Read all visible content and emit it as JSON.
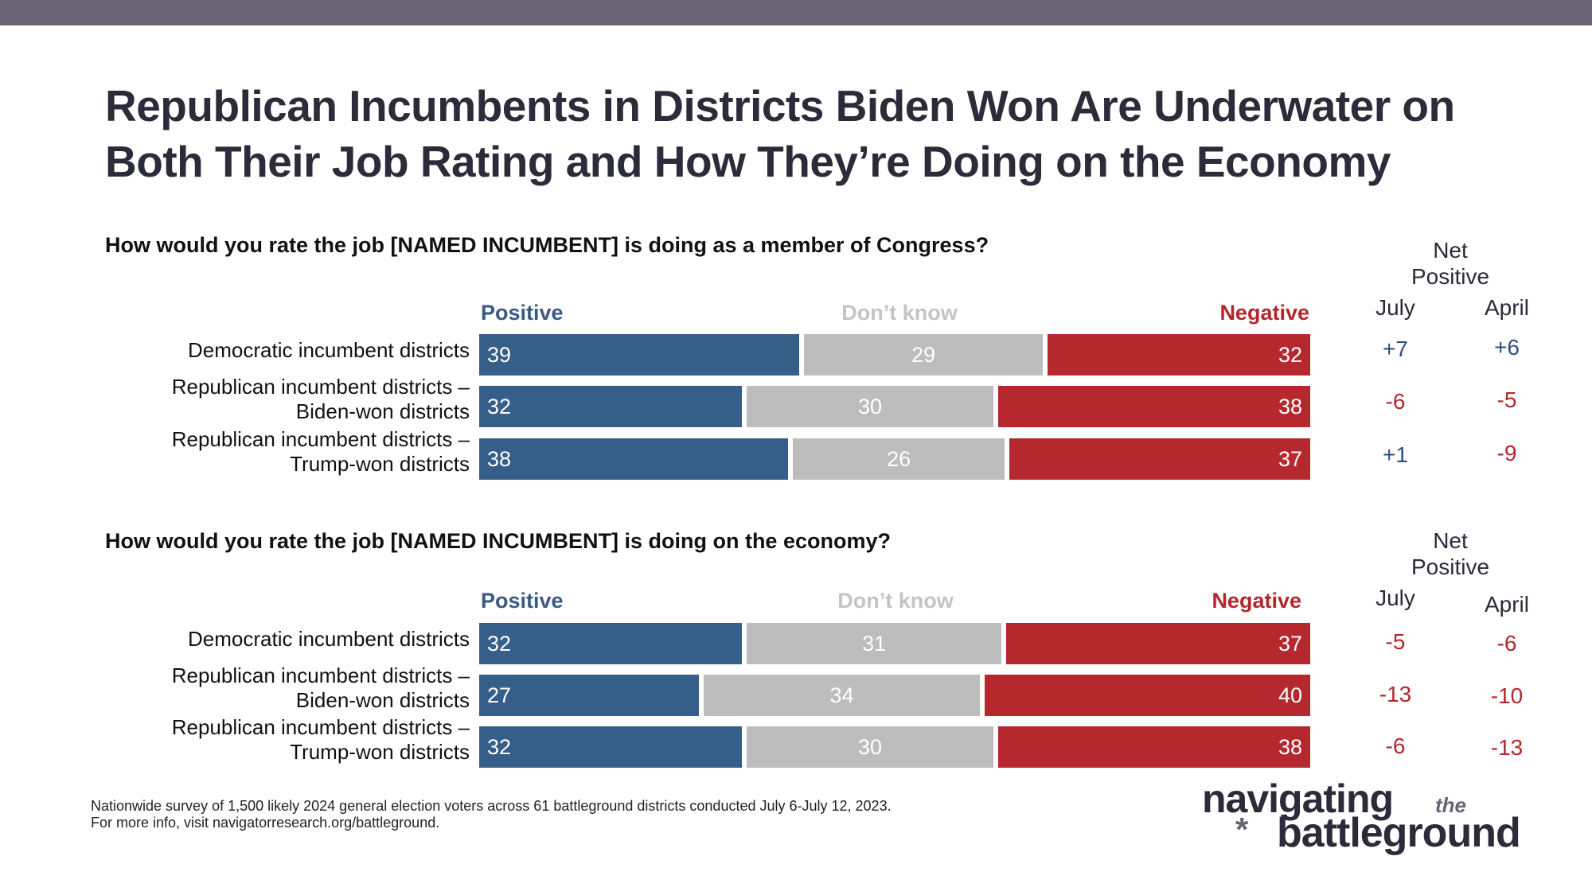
{
  "title": {
    "line1": "Republican Incumbents in Districts Biden Won Are Underwater on",
    "line2": "Both Their Job Rating and How They’re Doing on the Economy"
  },
  "net_header": {
    "line1": "Net",
    "line2": "Positive",
    "july": "July",
    "april": "April"
  },
  "legend": {
    "positive": "Positive",
    "dont_know": "Don’t know",
    "negative": "Negative"
  },
  "colors": {
    "positive": "#355e89",
    "dont_know": "#bdbdbd",
    "negative": "#b4282e"
  },
  "chart_data": [
    {
      "type": "bar",
      "stacked": true,
      "orientation": "horizontal",
      "title": "How would you rate the job [NAMED INCUMBENT] is doing as a member of Congress?",
      "categories": [
        [
          "Democratic incumbent districts",
          ""
        ],
        [
          "Republican incumbent districts –",
          "Biden-won districts"
        ],
        [
          "Republican incumbent districts –",
          "Trump-won districts"
        ]
      ],
      "series": [
        {
          "name": "Positive",
          "values": [
            39,
            32,
            38
          ]
        },
        {
          "name": "Don’t know",
          "values": [
            29,
            30,
            26
          ]
        },
        {
          "name": "Negative",
          "values": [
            32,
            38,
            37
          ]
        }
      ],
      "net_positive": {
        "july": [
          "+7",
          "-6",
          "+1"
        ],
        "april": [
          "+6",
          "-5",
          "-9"
        ]
      }
    },
    {
      "type": "bar",
      "stacked": true,
      "orientation": "horizontal",
      "title": "How would you rate the job [NAMED INCUMBENT] is doing on the economy?",
      "categories": [
        [
          "Democratic incumbent districts",
          ""
        ],
        [
          "Republican incumbent districts –",
          "Biden-won districts"
        ],
        [
          "Republican incumbent districts –",
          "Trump-won districts"
        ]
      ],
      "series": [
        {
          "name": "Positive",
          "values": [
            32,
            27,
            32
          ]
        },
        {
          "name": "Don’t know",
          "values": [
            31,
            34,
            30
          ]
        },
        {
          "name": "Negative",
          "values": [
            37,
            40,
            38
          ]
        }
      ],
      "net_positive": {
        "july": [
          "-5",
          "-13",
          "-6"
        ],
        "april": [
          "-6",
          "-10",
          "-13"
        ]
      }
    }
  ],
  "footnote": {
    "line1": "Nationwide survey of 1,500 likely 2024 general election voters across 61 battleground districts conducted July 6-July 12, 2023.",
    "line2": "For more info, visit navigatorresearch.org/battleground."
  },
  "logo": {
    "line1": "navigating",
    "the": "the",
    "star": "*",
    "line2": "battleground"
  }
}
